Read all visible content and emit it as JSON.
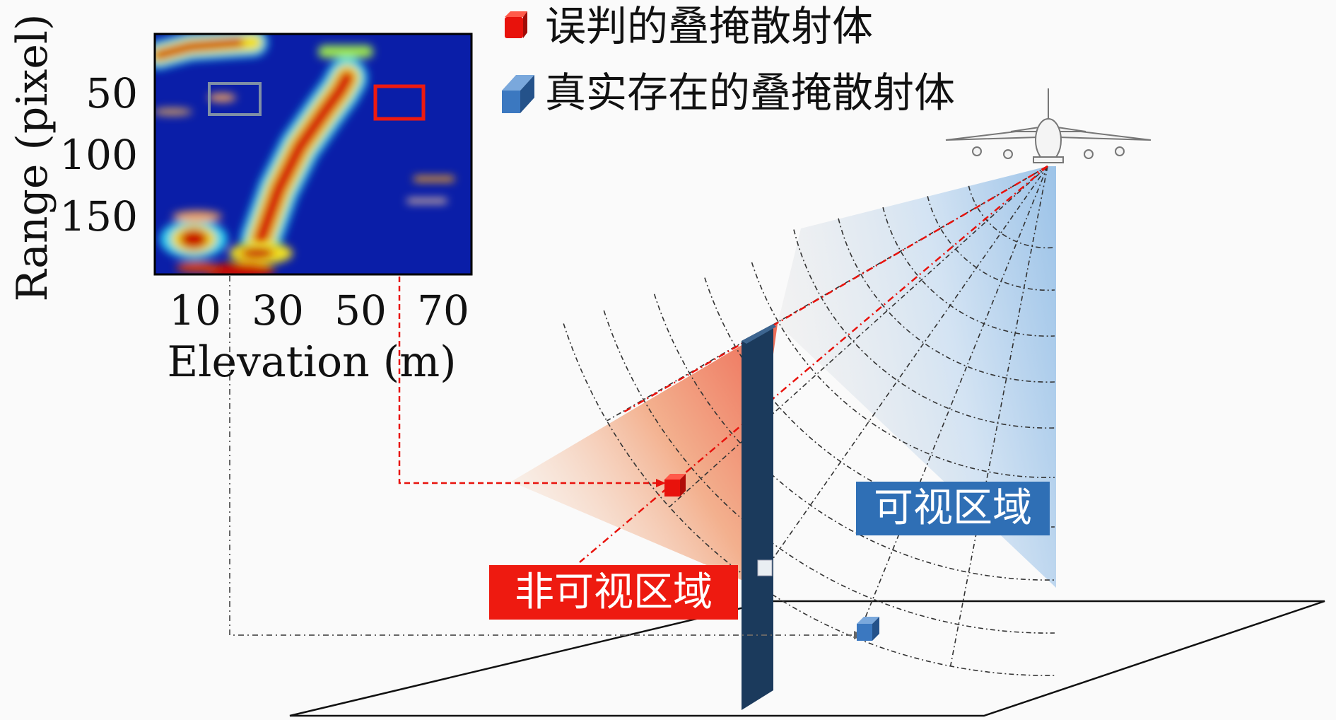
{
  "heatmap": {
    "ylabel": "Range (pixel)",
    "xlabel": "Elevation (m)",
    "yticks": [
      "50",
      "100",
      "150"
    ],
    "xticks": [
      "10",
      "30",
      "50",
      "70"
    ],
    "colormap": "jet"
  },
  "legend": {
    "items": [
      {
        "label": "误判的叠掩散射体",
        "color": "#e8120c"
      },
      {
        "label": "真实存在的叠掩散射体",
        "color": "#3b78c0"
      }
    ]
  },
  "regions": {
    "visible": {
      "label": "可视区域",
      "color": "#2f6fb5"
    },
    "invisible": {
      "label": "非可视区域",
      "color": "#ee1a10"
    }
  },
  "colors": {
    "wall": "#1b3a5c",
    "red_marker": "#e8120c",
    "blue_marker": "#3b78c0",
    "gray_box": "#7f8fa6"
  }
}
